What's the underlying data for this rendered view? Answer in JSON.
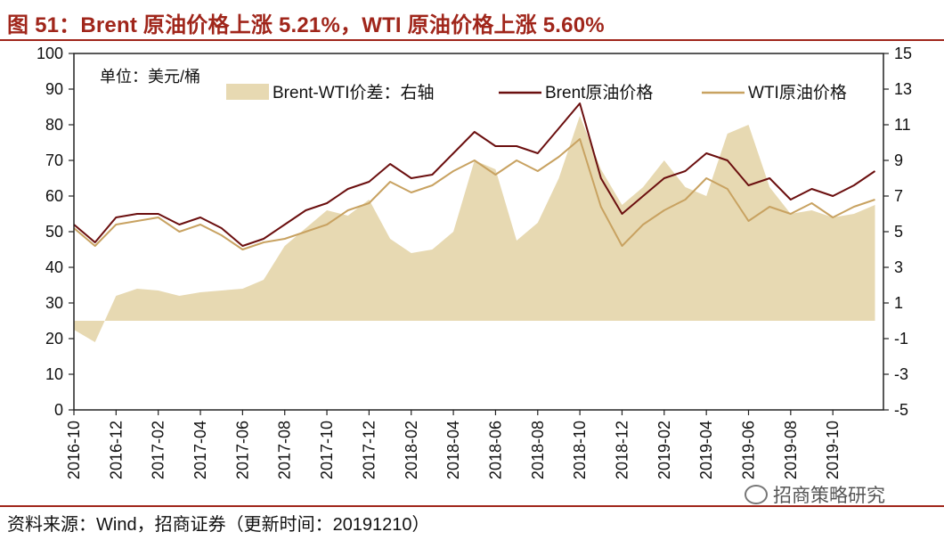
{
  "header": {
    "title": "图 51：Brent 原油价格上涨 5.21%，WTI 原油价格上涨 5.60%"
  },
  "footer": {
    "source": "资料来源：Wind，招商证券（更新时间：20191210）"
  },
  "watermark": {
    "text": "招商策略研究"
  },
  "colors": {
    "brent": "#6b0f0f",
    "wti": "#c8a261",
    "spread": "#e7d9b2",
    "title": "#a0261b"
  },
  "chart_data": {
    "type": "line",
    "unit_label": "单位：美元/桶",
    "x_ticks": [
      "2016-10",
      "2016-12",
      "2017-02",
      "2017-04",
      "2017-06",
      "2017-08",
      "2017-10",
      "2017-12",
      "2018-02",
      "2018-04",
      "2018-06",
      "2018-08",
      "2018-10",
      "2018-12",
      "2019-02",
      "2019-04",
      "2019-06",
      "2019-08",
      "2019-10"
    ],
    "y_left": {
      "min": 0,
      "max": 100,
      "ticks": [
        0,
        10,
        20,
        30,
        40,
        50,
        60,
        70,
        80,
        90,
        100
      ]
    },
    "y_right": {
      "min": -5,
      "max": 15,
      "ticks": [
        -5,
        -3,
        -1,
        1,
        3,
        5,
        7,
        9,
        11,
        13,
        15
      ]
    },
    "grid": false,
    "legend_position": "top",
    "series": [
      {
        "name": "Brent-WTI价差：右轴",
        "type": "area",
        "axis": "right",
        "x": [
          "2016-10",
          "2016-11",
          "2016-12",
          "2017-01",
          "2017-02",
          "2017-03",
          "2017-04",
          "2017-05",
          "2017-06",
          "2017-07",
          "2017-08",
          "2017-09",
          "2017-10",
          "2017-11",
          "2017-12",
          "2018-01",
          "2018-02",
          "2018-03",
          "2018-04",
          "2018-05",
          "2018-06",
          "2018-07",
          "2018-08",
          "2018-09",
          "2018-10",
          "2018-11",
          "2018-12",
          "2019-01",
          "2019-02",
          "2019-03",
          "2019-04",
          "2019-05",
          "2019-06",
          "2019-07",
          "2019-08",
          "2019-09",
          "2019-10",
          "2019-11",
          "2019-12"
        ],
        "values": [
          -0.5,
          -1.2,
          1.4,
          1.8,
          1.7,
          1.4,
          1.6,
          1.7,
          1.8,
          2.3,
          4.2,
          5.2,
          6.2,
          5.9,
          6.8,
          4.6,
          3.8,
          4.0,
          5.0,
          9.0,
          8.5,
          4.5,
          5.5,
          8.0,
          11.5,
          8.5,
          6.5,
          7.5,
          9.0,
          7.5,
          7.0,
          10.5,
          11.0,
          7.5,
          6.0,
          6.2,
          5.8,
          6.0,
          6.5
        ]
      },
      {
        "name": "Brent原油价格",
        "type": "line",
        "axis": "left",
        "x": [
          "2016-10",
          "2016-11",
          "2016-12",
          "2017-01",
          "2017-02",
          "2017-03",
          "2017-04",
          "2017-05",
          "2017-06",
          "2017-07",
          "2017-08",
          "2017-09",
          "2017-10",
          "2017-11",
          "2017-12",
          "2018-01",
          "2018-02",
          "2018-03",
          "2018-04",
          "2018-05",
          "2018-06",
          "2018-07",
          "2018-08",
          "2018-09",
          "2018-10",
          "2018-11",
          "2018-12",
          "2019-01",
          "2019-02",
          "2019-03",
          "2019-04",
          "2019-05",
          "2019-06",
          "2019-07",
          "2019-08",
          "2019-09",
          "2019-10",
          "2019-11",
          "2019-12"
        ],
        "values": [
          52,
          47,
          54,
          55,
          55,
          52,
          54,
          51,
          46,
          48,
          52,
          56,
          58,
          62,
          64,
          69,
          65,
          66,
          72,
          78,
          74,
          74,
          72,
          79,
          86,
          65,
          55,
          60,
          65,
          67,
          72,
          70,
          63,
          65,
          59,
          62,
          60,
          63,
          67
        ]
      },
      {
        "name": "WTI原油价格",
        "type": "line",
        "axis": "left",
        "x": [
          "2016-10",
          "2016-11",
          "2016-12",
          "2017-01",
          "2017-02",
          "2017-03",
          "2017-04",
          "2017-05",
          "2017-06",
          "2017-07",
          "2017-08",
          "2017-09",
          "2017-10",
          "2017-11",
          "2017-12",
          "2018-01",
          "2018-02",
          "2018-03",
          "2018-04",
          "2018-05",
          "2018-06",
          "2018-07",
          "2018-08",
          "2018-09",
          "2018-10",
          "2018-11",
          "2018-12",
          "2019-01",
          "2019-02",
          "2019-03",
          "2019-04",
          "2019-05",
          "2019-06",
          "2019-07",
          "2019-08",
          "2019-09",
          "2019-10",
          "2019-11",
          "2019-12"
        ],
        "values": [
          51,
          46,
          52,
          53,
          54,
          50,
          52,
          49,
          45,
          47,
          48,
          50,
          52,
          56,
          58,
          64,
          61,
          63,
          67,
          70,
          66,
          70,
          67,
          71,
          76,
          57,
          46,
          52,
          56,
          59,
          65,
          62,
          53,
          57,
          55,
          58,
          54,
          57,
          59
        ]
      }
    ]
  }
}
